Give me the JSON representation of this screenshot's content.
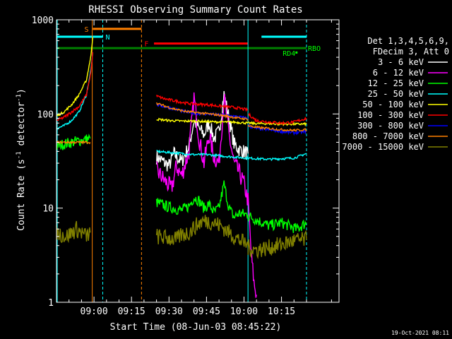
{
  "chart_data": {
    "type": "line",
    "title": "RHESSI Observing Summary Count Rates",
    "xlabel": "Start Time (08-Jun-03 08:45:22)",
    "ylabel_main": "Count Rate (s",
    "ylabel_sup": "-1",
    "ylabel_tail": " detector",
    "ylabel_end": ")",
    "yscale": "log",
    "ylim": [
      1,
      1000
    ],
    "xlim_min": [
      0,
      113
    ],
    "x_unit": "minutes after 08:45:22",
    "x_ticks": [
      {
        "t": 15,
        "label": "09:00"
      },
      {
        "t": 30,
        "label": "09:15"
      },
      {
        "t": 45,
        "label": "09:30"
      },
      {
        "t": 60,
        "label": "09:45"
      },
      {
        "t": 75,
        "label": "10:00"
      },
      {
        "t": 90,
        "label": "10:15"
      }
    ],
    "y_ticks": [
      {
        "v": 1,
        "label": "1"
      },
      {
        "v": 10,
        "label": "10"
      },
      {
        "v": 100,
        "label": "100"
      },
      {
        "v": 1000,
        "label": "1000"
      }
    ],
    "legend": {
      "header1": "Det 1,3,4,5,6,9,",
      "header2": "FDecim 3, Att 0",
      "position": "right"
    },
    "series": [
      {
        "name": "3 - 6 keV",
        "color": "#ffffff",
        "segments": [
          {
            "t": [
              40,
              45,
              47,
              50,
              53,
              55,
              57,
              59,
              61,
              63,
              65,
              67,
              69,
              71,
              73,
              76.6
            ],
            "v": [
              35,
              28,
              38,
              31,
              45,
              85,
              70,
              60,
              80,
              55,
              65,
              160,
              90,
              48,
              42,
              38
            ]
          }
        ]
      },
      {
        "name": "6 - 12 keV",
        "color": "#ff00ff",
        "segments": [
          {
            "t": [
              40,
              43,
              46,
              48,
              50,
              53,
              55,
              57,
              59,
              61,
              63,
              65,
              67,
              69,
              71,
              73,
              75,
              76.6,
              78,
              79,
              80
            ],
            "v": [
              25,
              20,
              16,
              28,
              22,
              40,
              150,
              55,
              30,
              60,
              35,
              30,
              150,
              60,
              30,
              24,
              18,
              12,
              3,
              1.6,
              1.2
            ]
          }
        ]
      },
      {
        "name": "12 - 25 keV",
        "color": "#00ff00",
        "segments": [
          {
            "t": [
              0,
              3,
              6,
              9,
              12,
              13.5
            ],
            "v": [
              45,
              48,
              50,
              52,
              54,
              55
            ]
          },
          {
            "t": [
              40,
              45,
              50,
              53,
              55,
              57,
              59,
              61,
              63,
              65,
              67,
              69,
              71,
              73,
              76.6
            ],
            "v": [
              11.5,
              10.2,
              9.5,
              10.5,
              13,
              12,
              10,
              11,
              9,
              10,
              18,
              10,
              8,
              8.8,
              8.5
            ]
          },
          {
            "t": [
              76.6,
              80,
              85,
              90,
              96,
              100
            ],
            "v": [
              8.3,
              7.5,
              6.5,
              7,
              6,
              7
            ]
          }
        ]
      },
      {
        "name": "25 - 50 keV",
        "color": "#00ffff",
        "segments": [
          {
            "t": [
              0,
              3,
              6,
              9,
              12,
              13.8,
              14.5
            ],
            "v": [
              70,
              75,
              85,
              105,
              160,
              300,
              450
            ]
          },
          {
            "t": [
              40,
              45,
              50,
              55,
              60,
              65,
              70,
              76.6,
              80,
              85,
              90,
              95,
              100
            ],
            "v": [
              40,
              39,
              38,
              37,
              37,
              36,
              35,
              34,
              33.5,
              33,
              33.5,
              34,
              38
            ]
          }
        ]
      },
      {
        "name": "50 - 100 keV",
        "color": "#ffff00",
        "segments": [
          {
            "t": [
              0,
              3,
              6,
              9,
              12,
              13.8,
              14.5
            ],
            "v": [
              95,
              105,
              125,
              160,
              230,
              420,
              650
            ]
          },
          {
            "t": [
              40,
              45,
              50,
              55,
              60,
              65,
              70,
              76.6,
              80,
              85,
              90,
              95,
              100
            ],
            "v": [
              88,
              85,
              84,
              84,
              83,
              82,
              82,
              80,
              79,
              79,
              78,
              78,
              78
            ]
          }
        ]
      },
      {
        "name": "100 - 300 keV",
        "color": "#ff0000",
        "segments": [
          {
            "t": [
              0,
              3,
              6,
              9,
              12,
              13.8,
              14.5
            ],
            "v": [
              85,
              92,
              105,
              120,
              160,
              280,
              450
            ]
          },
          {
            "t": [
              40,
              43,
              46,
              49,
              52,
              55,
              58,
              61,
              64,
              67,
              70,
              73,
              76.6
            ],
            "v": [
              155,
              145,
              140,
              135,
              130,
              128,
              126,
              125,
              122,
              120,
              118,
              115,
              110
            ]
          },
          {
            "t": [
              76.6,
              80,
              85,
              90,
              95,
              100
            ],
            "v": [
              100,
              85,
              82,
              80,
              82,
              90
            ]
          }
        ]
      },
      {
        "name": "300 - 800 keV",
        "color": "#0000ff",
        "segments": [
          {
            "t": [
              40,
              43,
              46,
              49,
              52,
              55,
              58,
              61,
              64,
              67,
              70,
              73,
              76.6
            ],
            "v": [
              125,
              120,
              115,
              110,
              105,
              102,
              100,
              100,
              98,
              97,
              95,
              93,
              90
            ]
          },
          {
            "t": [
              76.6,
              80,
              85,
              90,
              95,
              100
            ],
            "v": [
              75,
              70,
              68,
              65,
              63,
              65
            ]
          }
        ]
      },
      {
        "name": "800 - 7000 keV",
        "color": "#ff8000",
        "segments": [
          {
            "t": [
              0,
              3,
              6,
              9,
              12,
              13.5
            ],
            "v": [
              50,
              50,
              50,
              50,
              50,
              50
            ]
          },
          {
            "t": [
              40,
              43,
              46,
              49,
              52,
              55,
              58,
              61,
              64,
              67,
              70,
              73,
              76.6
            ],
            "v": [
              130,
              122,
              115,
              110,
              106,
              104,
              102,
              100,
              98,
              96,
              93,
              90,
              88
            ]
          },
          {
            "t": [
              76.6,
              80,
              85,
              90,
              95,
              100
            ],
            "v": [
              75,
              72,
              70,
              68,
              67,
              68
            ]
          }
        ]
      },
      {
        "name": "7000 - 15000 keV",
        "color": "#808000",
        "segments": [
          {
            "t": [
              0,
              4,
              8,
              12,
              13.5
            ],
            "v": [
              5.5,
              5,
              6,
              5,
              5.5
            ]
          },
          {
            "t": [
              40,
              45,
              48,
              50,
              53,
              55,
              58,
              60,
              63,
              66,
              69,
              72,
              76.6
            ],
            "v": [
              5,
              4.8,
              4.6,
              5.2,
              5.5,
              6.2,
              7.2,
              7.3,
              7.0,
              6.4,
              5.5,
              4.8,
              4.0
            ]
          },
          {
            "t": [
              76.6,
              80,
              85,
              90,
              95,
              100
            ],
            "v": [
              3.8,
              3.6,
              3.8,
              4.1,
              4.5,
              4.6
            ]
          }
        ]
      }
    ],
    "flag_bars": [
      {
        "label": "S",
        "color": "#ff8000",
        "t_start": 14.5,
        "t_end": 34,
        "v": 800,
        "label_t": 12
      },
      {
        "label": "N",
        "color": "#00ffff",
        "t_start": 0,
        "t_end": 18.5,
        "v": 660,
        "label_t": 20.5
      },
      {
        "label": "F",
        "color": "#ff0000",
        "t_start": 39,
        "t_end": 76.6,
        "v": 560,
        "label_t": 36
      },
      {
        "label": "",
        "color": "#00ffff",
        "t_start": 82,
        "t_end": 100,
        "v": 660,
        "label_t": 82
      },
      {
        "label": "",
        "color": "#008000",
        "t_start": 0,
        "t_end": 100,
        "v": 500,
        "label_t": 100
      }
    ],
    "flag_labels": [
      {
        "text": "RBO",
        "color": "#00ff00",
        "t": 100,
        "v": 500
      },
      {
        "text": "RD4",
        "color": "#00ff00",
        "t": 95,
        "v": 445
      }
    ],
    "vlines": [
      {
        "t": 0.3,
        "color": "#00ffff",
        "dash": false
      },
      {
        "t": 14.3,
        "color": "#ff8000",
        "dash": false
      },
      {
        "t": 18.5,
        "color": "#00ffff",
        "dash": true
      },
      {
        "t": 34,
        "color": "#ff8000",
        "dash": true
      },
      {
        "t": 76.6,
        "color": "#00ffff",
        "dash": false
      },
      {
        "t": 100,
        "color": "#00ffff",
        "dash": true
      }
    ]
  },
  "footer": {
    "timestamp": "19-Oct-2021 08:11"
  }
}
